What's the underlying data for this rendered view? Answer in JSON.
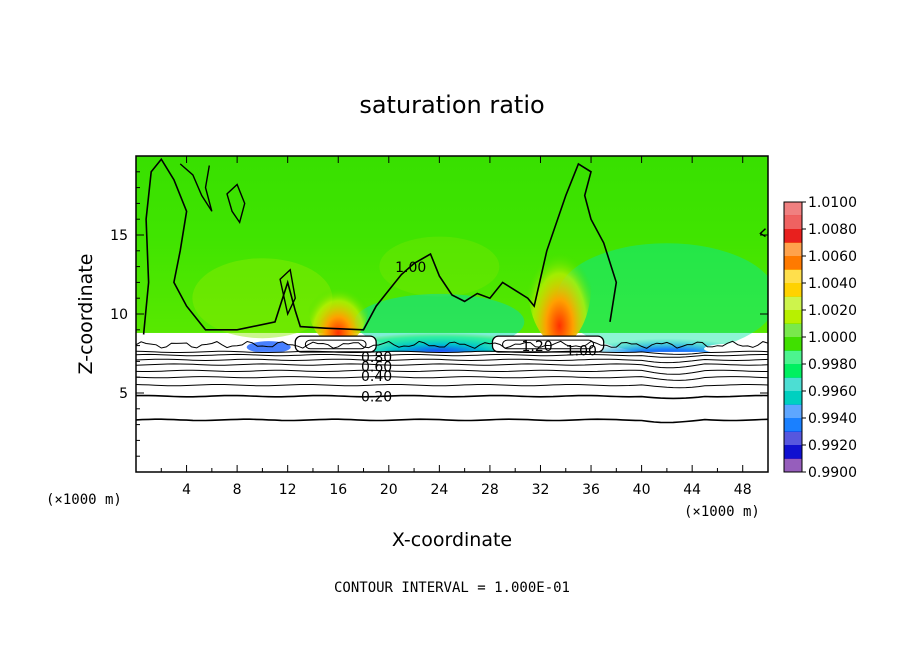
{
  "chart_data": {
    "type": "heatmap",
    "title": "saturation ratio",
    "xlabel": "X-coordinate",
    "ylabel": "Z-coordinate",
    "x_unit": "(×1000 m)",
    "y_unit": "(×1000 m)",
    "xlim": [
      0,
      50
    ],
    "ylim": [
      0,
      20
    ],
    "x_ticks": [
      4,
      8,
      12,
      16,
      20,
      24,
      28,
      32,
      36,
      40,
      44,
      48
    ],
    "y_ticks": [
      5,
      10,
      15
    ],
    "colorbar": {
      "ticks": [
        "1.0100",
        "1.0080",
        "1.0060",
        "1.0040",
        "1.0020",
        "1.0000",
        "0.9980",
        "0.9960",
        "0.9940",
        "0.9920",
        "0.9900"
      ],
      "colors": [
        "#f08080",
        "#e8201e",
        "#ff7a00",
        "#ffd200",
        "#b8f000",
        "#40e000",
        "#00f060",
        "#00d0c0",
        "#1a80ff",
        "#1010d0",
        "#6a1aa0"
      ]
    },
    "contour_labels": [
      {
        "text": "1.00",
        "x": 20.5,
        "z": 12.8
      },
      {
        "text": "1.20",
        "x": 30.5,
        "z": 7.8
      },
      {
        "text": "1.00",
        "x": 34.0,
        "z": 7.5
      },
      {
        "text": "0.80",
        "x": 17.8,
        "z": 7.1
      },
      {
        "text": "0.60",
        "x": 17.8,
        "z": 6.5
      },
      {
        "text": "0.40",
        "x": 17.8,
        "z": 5.9
      },
      {
        "text": "0.20",
        "x": 17.8,
        "z": 4.6
      }
    ],
    "annotation": "CONTOUR INTERVAL = 1.000E-01"
  }
}
